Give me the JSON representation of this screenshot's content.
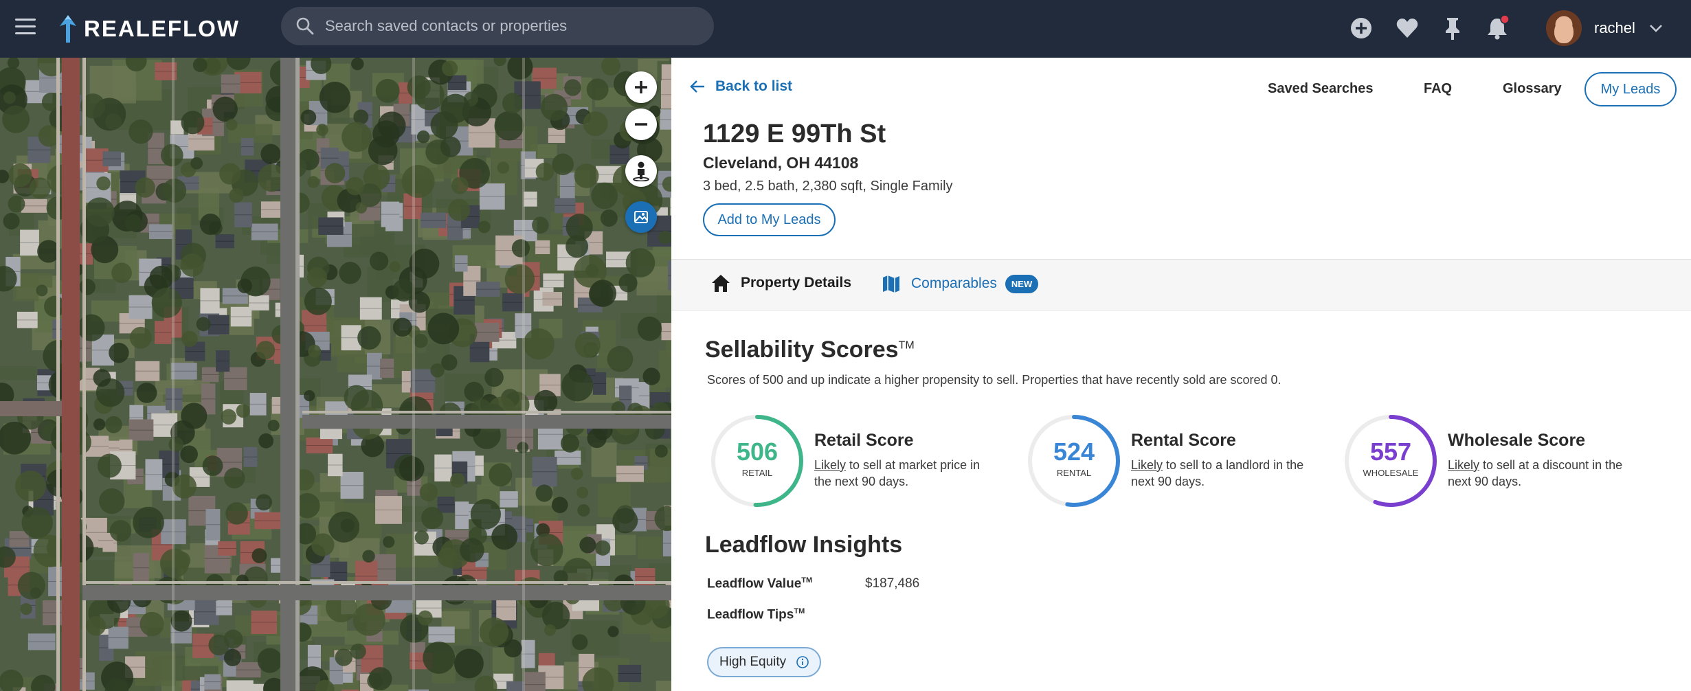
{
  "header": {
    "logo_text": "REALEFLOW",
    "search_placeholder": "Search saved contacts or properties",
    "username": "rachel",
    "icons": [
      "menu-icon",
      "add-icon",
      "heart-icon",
      "pin-icon",
      "bell-icon",
      "chevron-down-icon"
    ]
  },
  "map": {
    "controls": [
      "zoom-in-icon",
      "zoom-out-icon",
      "street-view-icon",
      "map-layer-icon"
    ]
  },
  "panel": {
    "back_label": "Back to list",
    "nav": {
      "saved_searches": "Saved Searches",
      "faq": "FAQ",
      "glossary": "Glossary",
      "my_leads": "My Leads"
    },
    "address_line1": "1129 E 99Th St",
    "address_line2": "Cleveland, OH 44108",
    "facts": "3 bed, 2.5 bath, 2,380 sqft, Single Family",
    "add_button": "Add to My Leads",
    "tabs": {
      "property_details": "Property Details",
      "comparables": "Comparables",
      "new_badge": "NEW"
    }
  },
  "sellability": {
    "title": "Sellability Scores",
    "tm": "TM",
    "description": "Scores of 500 and up indicate a higher propensity to sell. Properties that have recently sold are scored 0.",
    "scores": [
      {
        "value": "506",
        "fraction": 0.506,
        "label": "RETAIL",
        "title": "Retail Score",
        "likely": "Likely",
        "desc_rest": " to sell at market price in the next 90 days.",
        "color": "#3fb58a"
      },
      {
        "value": "524",
        "fraction": 0.524,
        "label": "RENTAL",
        "title": "Rental Score",
        "likely": "Likely",
        "desc_rest": " to sell to a landlord in the next 90 days.",
        "color": "#3a86d6"
      },
      {
        "value": "557",
        "fraction": 0.557,
        "label": "WHOLESALE",
        "title": "Wholesale Score",
        "likely": "Likely",
        "desc_rest": " to sell at a discount in the next 90 days.",
        "color": "#7a3fcf"
      }
    ]
  },
  "insights": {
    "title": "Leadflow Insights",
    "value_label": "Leadflow Value",
    "value_tm": "TM",
    "value": "$187,486",
    "tips_label": "Leadflow Tips",
    "tips_tm": "TM",
    "chip": "High Equity"
  },
  "colors": {
    "topbar": "#222b3b",
    "accent": "#1b6fb4"
  }
}
